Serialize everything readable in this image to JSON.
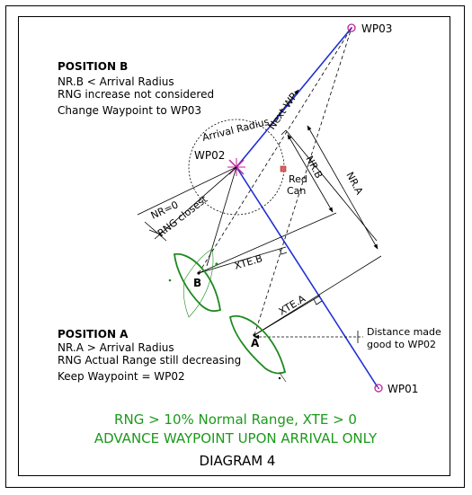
{
  "waypoints": {
    "wp01": "WP01",
    "wp02": "WP02",
    "wp03": "WP03"
  },
  "position_b": {
    "title": "POSITION B",
    "line1": "NR.B <  Arrival Radius",
    "line2": "RNG increase not considered",
    "line3": "Change Waypoint to WP03"
  },
  "position_a": {
    "title": "POSITION A",
    "line1": "NR.A > Arrival Radius",
    "line2": "RNG Actual Range still decreasing",
    "line3": "Keep Waypoint = WP02"
  },
  "labels": {
    "arrival_radius": "Arrival Radius",
    "next_wp": "Next WP",
    "nr_b": "NR.B",
    "nr_a": "NR.A",
    "red_can_1": "Red",
    "red_can_2": "Can",
    "nr_zero": "NR=0",
    "rng_closest": "RNG closest",
    "xte_b": "XTE.B",
    "xte_a": "XTE.A",
    "boat_a": "A",
    "boat_b": "B",
    "distance_1": "Distance made",
    "distance_2": "good to WP02"
  },
  "footer": {
    "rule_line": "RNG > 10% Normal Range, XTE > 0",
    "advance_line": "ADVANCE WAYPOINT UPON ARRIVAL ONLY",
    "diagram_title": "DIAGRAM 4"
  },
  "colors": {
    "route": "#1f2fd6",
    "boat": "#1d8a1d",
    "waypoint": "#c0209a",
    "red_can": "#e06060",
    "caption_green": "#1b9a1b"
  }
}
